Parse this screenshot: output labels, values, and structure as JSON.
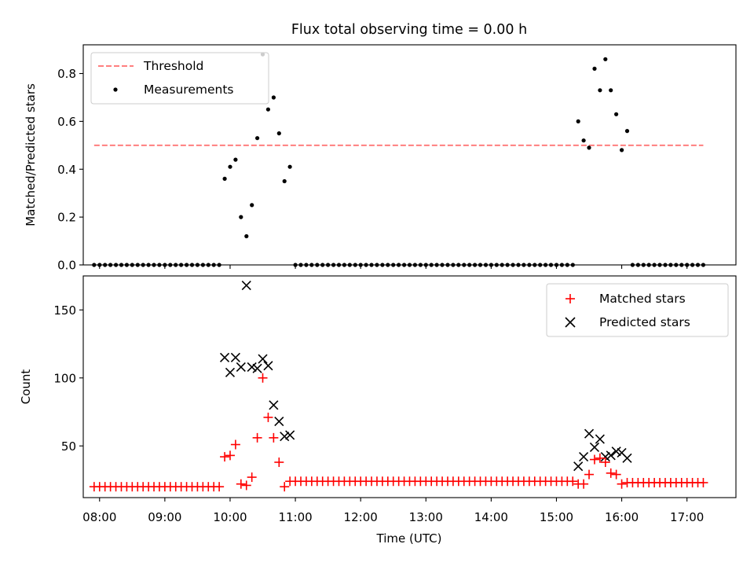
{
  "colors": {
    "threshold": "#ff7f7f",
    "measurements": "#000000",
    "matched": "#ff0000",
    "predicted": "#000000",
    "axes": "#000000",
    "background": "#ffffff"
  },
  "chart_data": [
    {
      "type": "scatter",
      "title": "Flux total observing time = 0.00 h",
      "xlabel": "",
      "ylabel": "Matched/Predicted stars",
      "x_axis": "time_utc",
      "xlim": [
        "07:45",
        "17:45"
      ],
      "ylim": [
        0.0,
        0.92
      ],
      "yticks": [
        0.0,
        0.2,
        0.4,
        0.6,
        0.8
      ],
      "ytick_labels": [
        "0.0",
        "0.2",
        "0.4",
        "0.6",
        "0.8"
      ],
      "xticks": [
        "08:00",
        "09:00",
        "10:00",
        "11:00",
        "12:00",
        "13:00",
        "14:00",
        "15:00",
        "16:00",
        "17:00"
      ],
      "xtick_labels_shown": false,
      "grid": false,
      "legend": "top-left",
      "threshold": {
        "name": "Threshold",
        "value": 0.5,
        "x_range": [
          "07:55",
          "17:15"
        ],
        "style": "dashed"
      },
      "series": [
        {
          "name": "Measurements",
          "marker": "dot",
          "points": [
            [
              "07:55",
              0
            ],
            [
              "08:00",
              0
            ],
            [
              "08:05",
              0
            ],
            [
              "08:10",
              0
            ],
            [
              "08:15",
              0
            ],
            [
              "08:20",
              0
            ],
            [
              "08:25",
              0
            ],
            [
              "08:30",
              0
            ],
            [
              "08:35",
              0
            ],
            [
              "08:40",
              0
            ],
            [
              "08:45",
              0
            ],
            [
              "08:50",
              0
            ],
            [
              "08:55",
              0
            ],
            [
              "09:00",
              0
            ],
            [
              "09:05",
              0
            ],
            [
              "09:10",
              0
            ],
            [
              "09:15",
              0
            ],
            [
              "09:20",
              0
            ],
            [
              "09:25",
              0
            ],
            [
              "09:30",
              0
            ],
            [
              "09:35",
              0
            ],
            [
              "09:40",
              0
            ],
            [
              "09:45",
              0
            ],
            [
              "09:50",
              0
            ],
            [
              "09:55",
              0.36
            ],
            [
              "10:00",
              0.41
            ],
            [
              "10:05",
              0.44
            ],
            [
              "10:10",
              0.2
            ],
            [
              "10:15",
              0.12
            ],
            [
              "10:20",
              0.25
            ],
            [
              "10:25",
              0.53
            ],
            [
              "10:30",
              0.88
            ],
            [
              "10:35",
              0.65
            ],
            [
              "10:40",
              0.7
            ],
            [
              "10:45",
              0.55
            ],
            [
              "10:50",
              0.35
            ],
            [
              "10:55",
              0.41
            ],
            [
              "11:00",
              0
            ],
            [
              "11:05",
              0
            ],
            [
              "11:10",
              0
            ],
            [
              "11:15",
              0
            ],
            [
              "11:20",
              0
            ],
            [
              "11:25",
              0
            ],
            [
              "11:30",
              0
            ],
            [
              "11:35",
              0
            ],
            [
              "11:40",
              0
            ],
            [
              "11:45",
              0
            ],
            [
              "11:50",
              0
            ],
            [
              "11:55",
              0
            ],
            [
              "12:00",
              0
            ],
            [
              "12:05",
              0
            ],
            [
              "12:10",
              0
            ],
            [
              "12:15",
              0
            ],
            [
              "12:20",
              0
            ],
            [
              "12:25",
              0
            ],
            [
              "12:30",
              0
            ],
            [
              "12:35",
              0
            ],
            [
              "12:40",
              0
            ],
            [
              "12:45",
              0
            ],
            [
              "12:50",
              0
            ],
            [
              "12:55",
              0
            ],
            [
              "13:00",
              0
            ],
            [
              "13:05",
              0
            ],
            [
              "13:10",
              0
            ],
            [
              "13:15",
              0
            ],
            [
              "13:20",
              0
            ],
            [
              "13:25",
              0
            ],
            [
              "13:30",
              0
            ],
            [
              "13:35",
              0
            ],
            [
              "13:40",
              0
            ],
            [
              "13:45",
              0
            ],
            [
              "13:50",
              0
            ],
            [
              "13:55",
              0
            ],
            [
              "14:00",
              0
            ],
            [
              "14:05",
              0
            ],
            [
              "14:10",
              0
            ],
            [
              "14:15",
              0
            ],
            [
              "14:20",
              0
            ],
            [
              "14:25",
              0
            ],
            [
              "14:30",
              0
            ],
            [
              "14:35",
              0
            ],
            [
              "14:40",
              0
            ],
            [
              "14:45",
              0
            ],
            [
              "14:50",
              0
            ],
            [
              "14:55",
              0
            ],
            [
              "15:00",
              0
            ],
            [
              "15:05",
              0
            ],
            [
              "15:10",
              0
            ],
            [
              "15:15",
              0
            ],
            [
              "15:20",
              0.6
            ],
            [
              "15:25",
              0.52
            ],
            [
              "15:30",
              0.49
            ],
            [
              "15:35",
              0.82
            ],
            [
              "15:40",
              0.73
            ],
            [
              "15:45",
              0.86
            ],
            [
              "15:50",
              0.73
            ],
            [
              "15:55",
              0.63
            ],
            [
              "16:00",
              0.48
            ],
            [
              "16:05",
              0.56
            ],
            [
              "16:10",
              0
            ],
            [
              "16:15",
              0
            ],
            [
              "16:20",
              0
            ],
            [
              "16:25",
              0
            ],
            [
              "16:30",
              0
            ],
            [
              "16:35",
              0
            ],
            [
              "16:40",
              0
            ],
            [
              "16:45",
              0
            ],
            [
              "16:50",
              0
            ],
            [
              "16:55",
              0
            ],
            [
              "17:00",
              0
            ],
            [
              "17:05",
              0
            ],
            [
              "17:10",
              0
            ],
            [
              "17:15",
              0
            ]
          ]
        }
      ]
    },
    {
      "type": "scatter",
      "title": "",
      "xlabel": "Time (UTC)",
      "ylabel": "Count",
      "x_axis": "time_utc",
      "xlim": [
        "07:45",
        "17:45"
      ],
      "ylim": [
        12,
        175
      ],
      "yticks": [
        50,
        100,
        150
      ],
      "ytick_labels": [
        "50",
        "100",
        "150"
      ],
      "xticks": [
        "08:00",
        "09:00",
        "10:00",
        "11:00",
        "12:00",
        "13:00",
        "14:00",
        "15:00",
        "16:00",
        "17:00"
      ],
      "xtick_labels": [
        "08:00",
        "09:00",
        "10:00",
        "11:00",
        "12:00",
        "13:00",
        "14:00",
        "15:00",
        "16:00",
        "17:00"
      ],
      "grid": false,
      "legend": "top-right",
      "series": [
        {
          "name": "Matched stars",
          "marker": "plus",
          "points": [
            [
              "07:55",
              20
            ],
            [
              "08:00",
              20
            ],
            [
              "08:05",
              20
            ],
            [
              "08:10",
              20
            ],
            [
              "08:15",
              20
            ],
            [
              "08:20",
              20
            ],
            [
              "08:25",
              20
            ],
            [
              "08:30",
              20
            ],
            [
              "08:35",
              20
            ],
            [
              "08:40",
              20
            ],
            [
              "08:45",
              20
            ],
            [
              "08:50",
              20
            ],
            [
              "08:55",
              20
            ],
            [
              "09:00",
              20
            ],
            [
              "09:05",
              20
            ],
            [
              "09:10",
              20
            ],
            [
              "09:15",
              20
            ],
            [
              "09:20",
              20
            ],
            [
              "09:25",
              20
            ],
            [
              "09:30",
              20
            ],
            [
              "09:35",
              20
            ],
            [
              "09:40",
              20
            ],
            [
              "09:45",
              20
            ],
            [
              "09:50",
              20
            ],
            [
              "09:55",
              42
            ],
            [
              "10:00",
              43
            ],
            [
              "10:05",
              51
            ],
            [
              "10:10",
              22
            ],
            [
              "10:15",
              21
            ],
            [
              "10:20",
              27
            ],
            [
              "10:25",
              56
            ],
            [
              "10:30",
              100
            ],
            [
              "10:35",
              71
            ],
            [
              "10:40",
              56
            ],
            [
              "10:45",
              38
            ],
            [
              "10:50",
              20
            ],
            [
              "10:55",
              24
            ],
            [
              "11:00",
              24
            ],
            [
              "11:05",
              24
            ],
            [
              "11:10",
              24
            ],
            [
              "11:15",
              24
            ],
            [
              "11:20",
              24
            ],
            [
              "11:25",
              24
            ],
            [
              "11:30",
              24
            ],
            [
              "11:35",
              24
            ],
            [
              "11:40",
              24
            ],
            [
              "11:45",
              24
            ],
            [
              "11:50",
              24
            ],
            [
              "11:55",
              24
            ],
            [
              "12:00",
              24
            ],
            [
              "12:05",
              24
            ],
            [
              "12:10",
              24
            ],
            [
              "12:15",
              24
            ],
            [
              "12:20",
              24
            ],
            [
              "12:25",
              24
            ],
            [
              "12:30",
              24
            ],
            [
              "12:35",
              24
            ],
            [
              "12:40",
              24
            ],
            [
              "12:45",
              24
            ],
            [
              "12:50",
              24
            ],
            [
              "12:55",
              24
            ],
            [
              "13:00",
              24
            ],
            [
              "13:05",
              24
            ],
            [
              "13:10",
              24
            ],
            [
              "13:15",
              24
            ],
            [
              "13:20",
              24
            ],
            [
              "13:25",
              24
            ],
            [
              "13:30",
              24
            ],
            [
              "13:35",
              24
            ],
            [
              "13:40",
              24
            ],
            [
              "13:45",
              24
            ],
            [
              "13:50",
              24
            ],
            [
              "13:55",
              24
            ],
            [
              "14:00",
              24
            ],
            [
              "14:05",
              24
            ],
            [
              "14:10",
              24
            ],
            [
              "14:15",
              24
            ],
            [
              "14:20",
              24
            ],
            [
              "14:25",
              24
            ],
            [
              "14:30",
              24
            ],
            [
              "14:35",
              24
            ],
            [
              "14:40",
              24
            ],
            [
              "14:45",
              24
            ],
            [
              "14:50",
              24
            ],
            [
              "14:55",
              24
            ],
            [
              "15:00",
              24
            ],
            [
              "15:05",
              24
            ],
            [
              "15:10",
              24
            ],
            [
              "15:15",
              24
            ],
            [
              "15:20",
              22
            ],
            [
              "15:25",
              22
            ],
            [
              "15:30",
              29
            ],
            [
              "15:35",
              40
            ],
            [
              "15:40",
              41
            ],
            [
              "15:45",
              38
            ],
            [
              "15:50",
              30
            ],
            [
              "15:55",
              29
            ],
            [
              "16:00",
              22
            ],
            [
              "16:05",
              23
            ],
            [
              "16:10",
              23
            ],
            [
              "16:15",
              23
            ],
            [
              "16:20",
              23
            ],
            [
              "16:25",
              23
            ],
            [
              "16:30",
              23
            ],
            [
              "16:35",
              23
            ],
            [
              "16:40",
              23
            ],
            [
              "16:45",
              23
            ],
            [
              "16:50",
              23
            ],
            [
              "16:55",
              23
            ],
            [
              "17:00",
              23
            ],
            [
              "17:05",
              23
            ],
            [
              "17:10",
              23
            ],
            [
              "17:15",
              23
            ]
          ]
        },
        {
          "name": "Predicted stars",
          "marker": "x",
          "points": [
            [
              "09:55",
              115
            ],
            [
              "10:00",
              104
            ],
            [
              "10:05",
              115
            ],
            [
              "10:10",
              108
            ],
            [
              "10:15",
              168
            ],
            [
              "10:20",
              108
            ],
            [
              "10:25",
              107
            ],
            [
              "10:30",
              114
            ],
            [
              "10:35",
              109
            ],
            [
              "10:40",
              80
            ],
            [
              "10:45",
              68
            ],
            [
              "10:50",
              57
            ],
            [
              "10:55",
              58
            ],
            [
              "15:20",
              35
            ],
            [
              "15:25",
              42
            ],
            [
              "15:30",
              59
            ],
            [
              "15:35",
              49
            ],
            [
              "15:40",
              55
            ],
            [
              "15:45",
              42
            ],
            [
              "15:50",
              43
            ],
            [
              "15:55",
              46
            ],
            [
              "16:00",
              45
            ],
            [
              "16:05",
              41
            ]
          ]
        }
      ]
    }
  ]
}
